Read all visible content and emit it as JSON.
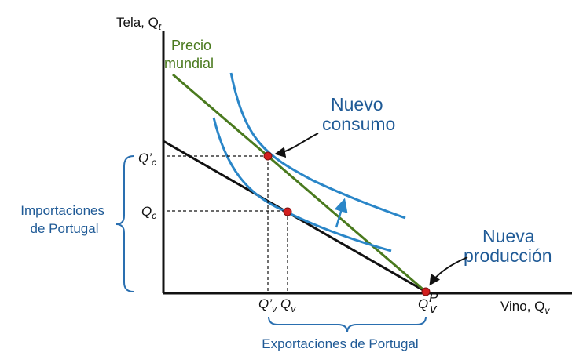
{
  "axes": {
    "y_title": "Tela, Q",
    "y_title_sub": "t",
    "x_title": "Vino, Q",
    "x_title_sub": "v"
  },
  "world_price_label": [
    "Precio",
    "mundial"
  ],
  "new_consumption_label": [
    "Nuevo",
    "consumo"
  ],
  "new_production_label": [
    "Nueva",
    "producción"
  ],
  "y_ticks": {
    "qc_prime": {
      "base": "Q’",
      "sub": "c"
    },
    "qc": {
      "base": "Q",
      "sub": "c"
    }
  },
  "x_ticks": {
    "qv_prime": {
      "base": "Q’",
      "sub": "v"
    },
    "qv": {
      "base": "Q",
      "sub": "v"
    },
    "qv_p": {
      "base": "Q",
      "sup": "P",
      "sub": "v"
    }
  },
  "imports_label": [
    "Importaciones",
    "de Portugal"
  ],
  "exports_label": "Exportaciones de Portugal",
  "colors": {
    "world_price": "#4a7a1e",
    "indifference": "#2a86c8",
    "points": "#d21f1f",
    "text_blue": "#1f5a96",
    "black": "#111111"
  }
}
